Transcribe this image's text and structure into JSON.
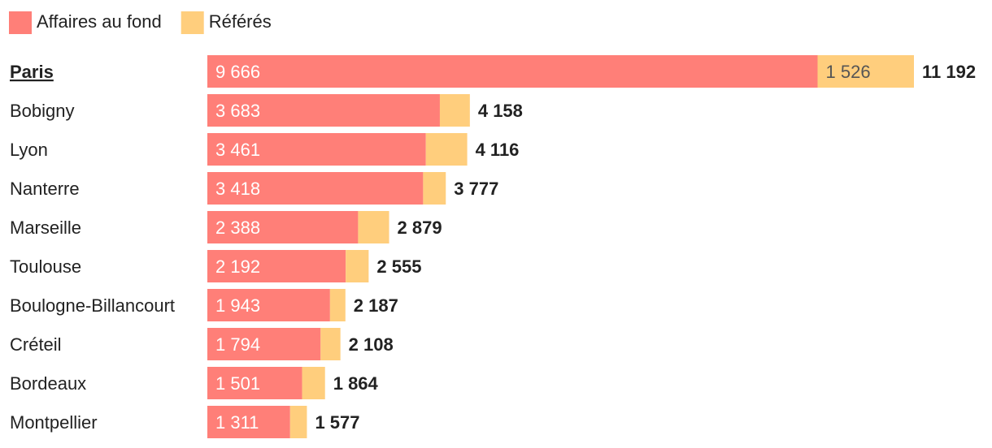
{
  "chart_data": {
    "type": "bar",
    "orientation": "horizontal",
    "stacked": true,
    "legend_position": "top-left",
    "categories": [
      "Paris",
      "Bobigny",
      "Lyon",
      "Nanterre",
      "Marseille",
      "Toulouse",
      "Boulogne-Billancourt",
      "Créteil",
      "Bordeaux",
      "Montpellier"
    ],
    "highlighted_category": "Paris",
    "series": [
      {
        "name": "Affaires au fond",
        "color": "#ff7f78",
        "label_color": "#ffffff",
        "values": [
          9666,
          3683,
          3461,
          3418,
          2388,
          2192,
          1943,
          1794,
          1501,
          1311
        ],
        "labels": [
          "9 666",
          "3 683",
          "3 461",
          "3 418",
          "2 388",
          "2 192",
          "1 943",
          "1 794",
          "1 501",
          "1 311"
        ]
      },
      {
        "name": "Référés",
        "color": "#ffce7d",
        "label_color": "#555555",
        "values": [
          1526,
          475,
          655,
          359,
          491,
          363,
          244,
          314,
          363,
          266
        ],
        "labels": [
          "1 526",
          "",
          "",
          "",
          "",
          "",
          "",
          "",
          "",
          ""
        ]
      }
    ],
    "totals": [
      11192,
      4158,
      4116,
      3777,
      2879,
      2555,
      2187,
      2108,
      1864,
      1577
    ],
    "total_labels": [
      "11 192",
      "4 158",
      "4 116",
      "3 777",
      "2 879",
      "2 555",
      "2 187",
      "2 108",
      "1 864",
      "1 577"
    ],
    "xlim": [
      0,
      11192
    ],
    "grid": false,
    "title": "",
    "xlabel": "",
    "ylabel": ""
  }
}
